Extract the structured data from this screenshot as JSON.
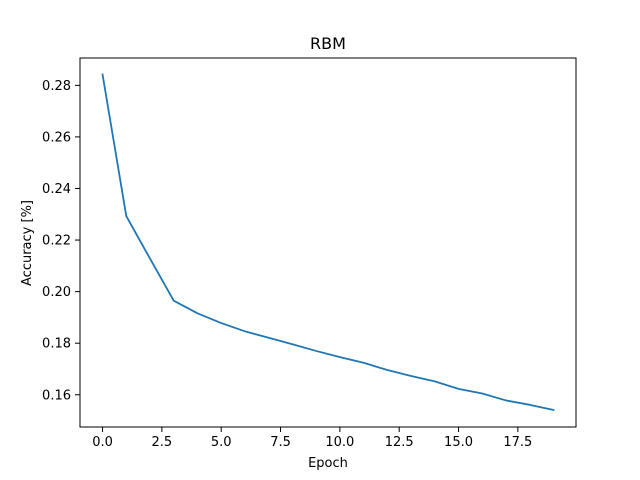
{
  "chart_data": {
    "type": "line",
    "title": "RBM",
    "xlabel": "Epoch",
    "ylabel": "Accuracy [%]",
    "xlim": [
      -0.95,
      19.95
    ],
    "ylim": [
      0.1475,
      0.2906
    ],
    "grid": false,
    "legend": "none",
    "x_ticks": [
      0.0,
      2.5,
      5.0,
      7.5,
      10.0,
      12.5,
      15.0,
      17.5
    ],
    "x_tick_labels": [
      "0.0",
      "2.5",
      "5.0",
      "7.5",
      "10.0",
      "12.5",
      "15.0",
      "17.5"
    ],
    "y_ticks": [
      0.16,
      0.18,
      0.2,
      0.22,
      0.24,
      0.26,
      0.28
    ],
    "y_tick_labels": [
      "0.16",
      "0.18",
      "0.20",
      "0.22",
      "0.24",
      "0.26",
      "0.28"
    ],
    "x": [
      0,
      1,
      2,
      3,
      4,
      5,
      6,
      7,
      8,
      9,
      10,
      11,
      12,
      13,
      14,
      15,
      16,
      17,
      18,
      19
    ],
    "series": [
      {
        "color": "#1f77b4",
        "values": [
          0.2842,
          0.2293,
          0.2128,
          0.1965,
          0.1916,
          0.1878,
          0.1846,
          0.1821,
          0.1796,
          0.177,
          0.1746,
          0.1724,
          0.1696,
          0.1673,
          0.1652,
          0.1623,
          0.1605,
          0.1578,
          0.1561,
          0.1541
        ]
      }
    ]
  }
}
